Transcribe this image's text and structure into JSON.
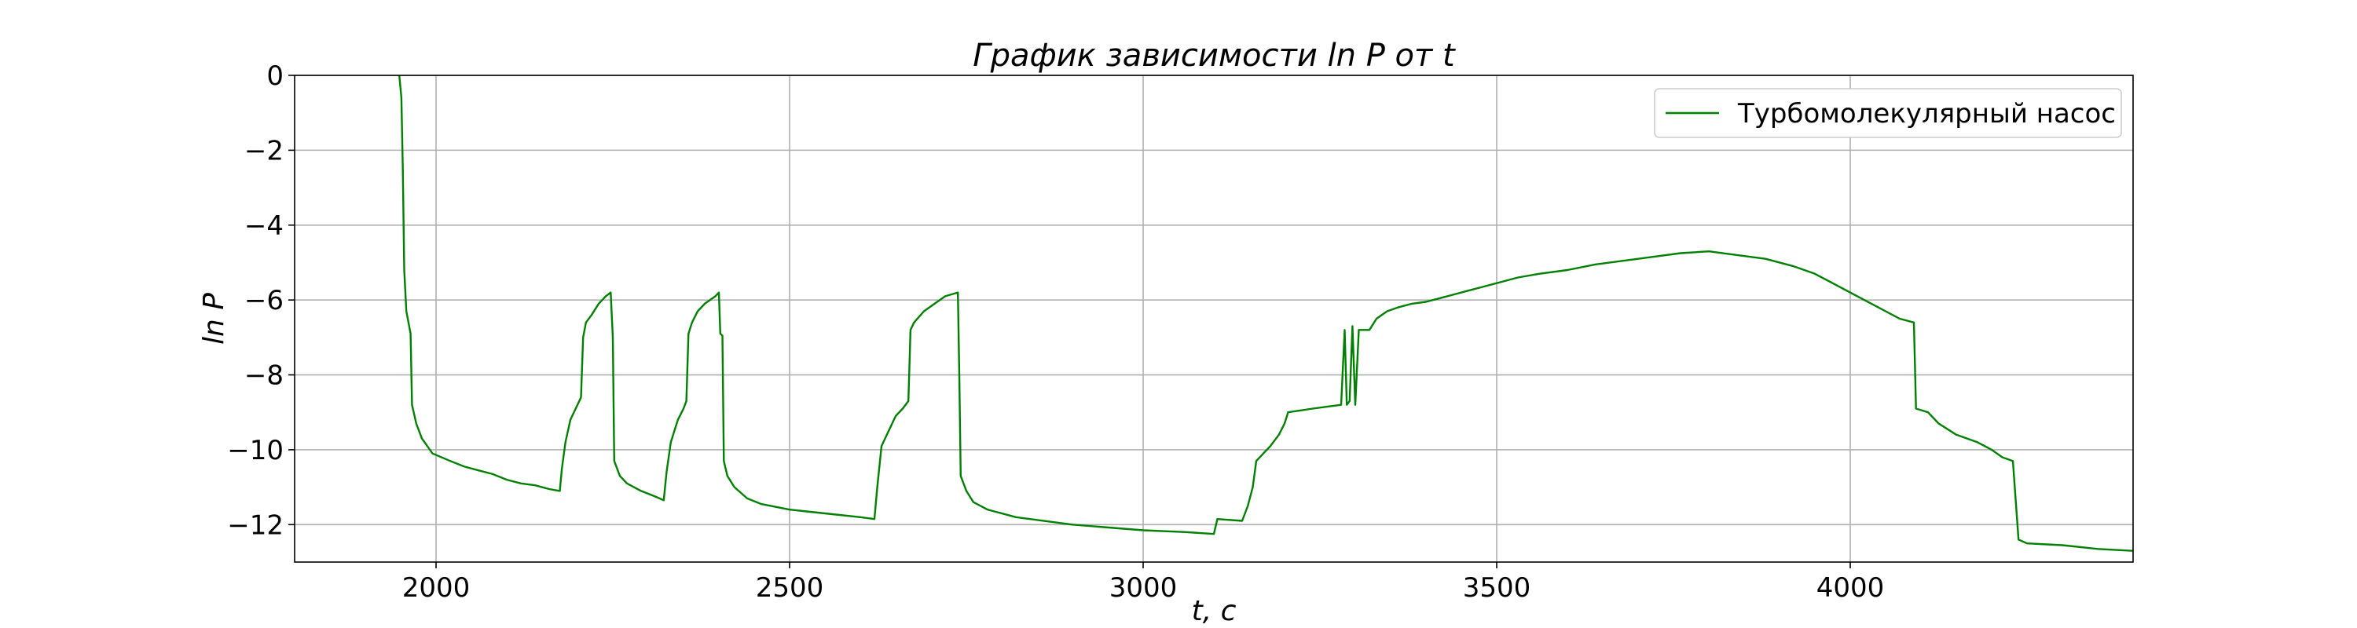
{
  "chart_data": {
    "type": "line",
    "title": "График зависимости ln P от t",
    "xlabel": "t, c",
    "ylabel": "ln P",
    "xlim": [
      1800,
      4400
    ],
    "ylim": [
      -13,
      0
    ],
    "xticks": [
      2000,
      2500,
      3000,
      3500,
      4000
    ],
    "yticks": [
      0,
      -2,
      -4,
      -6,
      -8,
      -10,
      -12
    ],
    "xtick_labels": [
      "2000",
      "2500",
      "3000",
      "3500",
      "4000"
    ],
    "ytick_labels": [
      "0",
      "−2",
      "−4",
      "−6",
      "−8",
      "−10",
      "−12"
    ],
    "grid": true,
    "legend_position": "top-right",
    "series": [
      {
        "name": "Турбомолекулярный насос",
        "color": "#008000",
        "points": [
          [
            1948,
            0
          ],
          [
            1951,
            -0.6
          ],
          [
            1953,
            -2.5
          ],
          [
            1955,
            -5.2
          ],
          [
            1958,
            -6.3
          ],
          [
            1961,
            -6.6
          ],
          [
            1964,
            -6.9
          ],
          [
            1966,
            -8.8
          ],
          [
            1972,
            -9.3
          ],
          [
            1980,
            -9.7
          ],
          [
            1995,
            -10.1
          ],
          [
            2020,
            -10.3
          ],
          [
            2040,
            -10.45
          ],
          [
            2060,
            -10.55
          ],
          [
            2080,
            -10.65
          ],
          [
            2100,
            -10.8
          ],
          [
            2120,
            -10.9
          ],
          [
            2140,
            -10.95
          ],
          [
            2160,
            -11.05
          ],
          [
            2175,
            -11.1
          ],
          [
            2178,
            -10.5
          ],
          [
            2183,
            -9.8
          ],
          [
            2190,
            -9.2
          ],
          [
            2200,
            -8.8
          ],
          [
            2205,
            -8.6
          ],
          [
            2208,
            -7.0
          ],
          [
            2212,
            -6.6
          ],
          [
            2220,
            -6.4
          ],
          [
            2230,
            -6.1
          ],
          [
            2240,
            -5.9
          ],
          [
            2247,
            -5.8
          ],
          [
            2250,
            -7.0
          ],
          [
            2252,
            -10.3
          ],
          [
            2260,
            -10.7
          ],
          [
            2270,
            -10.9
          ],
          [
            2290,
            -11.1
          ],
          [
            2310,
            -11.25
          ],
          [
            2322,
            -11.35
          ],
          [
            2326,
            -10.6
          ],
          [
            2332,
            -9.8
          ],
          [
            2342,
            -9.2
          ],
          [
            2350,
            -8.9
          ],
          [
            2354,
            -8.7
          ],
          [
            2357,
            -6.9
          ],
          [
            2362,
            -6.6
          ],
          [
            2370,
            -6.3
          ],
          [
            2380,
            -6.1
          ],
          [
            2395,
            -5.9
          ],
          [
            2400,
            -5.8
          ],
          [
            2402,
            -6.9
          ],
          [
            2405,
            -6.95
          ],
          [
            2407,
            -10.3
          ],
          [
            2412,
            -10.7
          ],
          [
            2422,
            -11.0
          ],
          [
            2440,
            -11.3
          ],
          [
            2460,
            -11.45
          ],
          [
            2500,
            -11.6
          ],
          [
            2550,
            -11.7
          ],
          [
            2600,
            -11.8
          ],
          [
            2620,
            -11.85
          ],
          [
            2624,
            -11.0
          ],
          [
            2630,
            -9.9
          ],
          [
            2640,
            -9.5
          ],
          [
            2650,
            -9.1
          ],
          [
            2660,
            -8.9
          ],
          [
            2668,
            -8.7
          ],
          [
            2671,
            -6.8
          ],
          [
            2676,
            -6.6
          ],
          [
            2690,
            -6.3
          ],
          [
            2705,
            -6.1
          ],
          [
            2720,
            -5.9
          ],
          [
            2738,
            -5.8
          ],
          [
            2740,
            -8.0
          ],
          [
            2742,
            -10.7
          ],
          [
            2750,
            -11.1
          ],
          [
            2760,
            -11.4
          ],
          [
            2780,
            -11.6
          ],
          [
            2820,
            -11.8
          ],
          [
            2900,
            -12.0
          ],
          [
            3000,
            -12.15
          ],
          [
            3060,
            -12.2
          ],
          [
            3100,
            -12.25
          ],
          [
            3105,
            -11.85
          ],
          [
            3140,
            -11.9
          ],
          [
            3148,
            -11.5
          ],
          [
            3155,
            -11.0
          ],
          [
            3160,
            -10.3
          ],
          [
            3170,
            -10.1
          ],
          [
            3180,
            -9.9
          ],
          [
            3192,
            -9.6
          ],
          [
            3200,
            -9.3
          ],
          [
            3205,
            -9.0
          ],
          [
            3240,
            -8.9
          ],
          [
            3260,
            -8.85
          ],
          [
            3280,
            -8.8
          ],
          [
            3285,
            -6.8
          ],
          [
            3288,
            -8.8
          ],
          [
            3292,
            -8.7
          ],
          [
            3296,
            -6.7
          ],
          [
            3300,
            -8.8
          ],
          [
            3305,
            -6.8
          ],
          [
            3320,
            -6.8
          ],
          [
            3330,
            -6.5
          ],
          [
            3345,
            -6.3
          ],
          [
            3360,
            -6.2
          ],
          [
            3380,
            -6.1
          ],
          [
            3400,
            -6.05
          ],
          [
            3420,
            -5.95
          ],
          [
            3440,
            -5.85
          ],
          [
            3460,
            -5.75
          ],
          [
            3480,
            -5.65
          ],
          [
            3500,
            -5.55
          ],
          [
            3530,
            -5.4
          ],
          [
            3560,
            -5.3
          ],
          [
            3600,
            -5.2
          ],
          [
            3640,
            -5.05
          ],
          [
            3680,
            -4.95
          ],
          [
            3720,
            -4.85
          ],
          [
            3760,
            -4.75
          ],
          [
            3800,
            -4.7
          ],
          [
            3840,
            -4.8
          ],
          [
            3880,
            -4.9
          ],
          [
            3920,
            -5.1
          ],
          [
            3950,
            -5.3
          ],
          [
            3970,
            -5.5
          ],
          [
            3990,
            -5.7
          ],
          [
            4010,
            -5.9
          ],
          [
            4030,
            -6.1
          ],
          [
            4050,
            -6.3
          ],
          [
            4070,
            -6.5
          ],
          [
            4090,
            -6.6
          ],
          [
            4093,
            -8.9
          ],
          [
            4110,
            -9.0
          ],
          [
            4125,
            -9.3
          ],
          [
            4150,
            -9.6
          ],
          [
            4180,
            -9.8
          ],
          [
            4200,
            -10.0
          ],
          [
            4215,
            -10.2
          ],
          [
            4230,
            -10.3
          ],
          [
            4238,
            -12.4
          ],
          [
            4250,
            -12.5
          ],
          [
            4300,
            -12.55
          ],
          [
            4350,
            -12.65
          ],
          [
            4400,
            -12.7
          ]
        ]
      }
    ]
  }
}
